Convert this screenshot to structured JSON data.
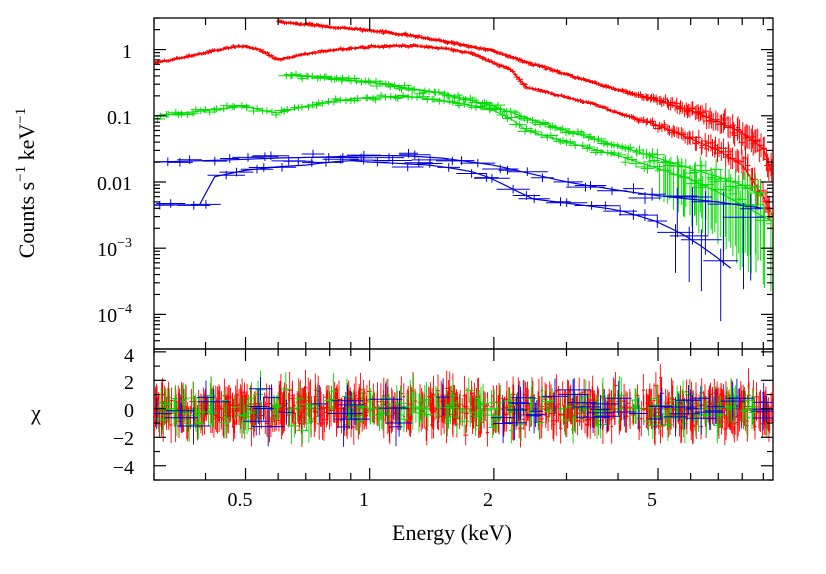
{
  "chart_data": {
    "type": "line",
    "description_free": true,
    "x_scale": "log",
    "xlabel": "Energy (keV)",
    "xlim": [
      0.3,
      9.5
    ],
    "x_ticks": [
      0.5,
      1,
      2,
      5
    ],
    "x_tick_labels": [
      "0.5",
      "1",
      "2",
      "5"
    ],
    "top_panel": {
      "ylabel_main": "Counts s",
      "ylabel_exp1": "−1",
      "ylabel_mid": " keV",
      "ylabel_exp2": "−1",
      "y_scale": "log",
      "ylim": [
        3e-05,
        3
      ],
      "y_ticks": [
        {
          "value": 1,
          "base": "1",
          "exp": ""
        },
        {
          "value": 0.1,
          "base": "0.1",
          "exp": ""
        },
        {
          "value": 0.01,
          "base": "0.01",
          "exp": ""
        },
        {
          "value": 0.001,
          "base": "10",
          "exp": "−3"
        },
        {
          "value": 0.0001,
          "base": "10",
          "exp": "−4"
        }
      ],
      "series": [
        {
          "name": "red-low",
          "color": "#ff0000",
          "x": [
            0.3,
            0.35,
            0.4,
            0.45,
            0.5,
            0.55,
            0.6,
            0.7,
            0.8,
            0.9,
            1.0,
            1.2,
            1.4,
            1.6,
            1.8,
            2.0,
            2.2,
            2.4,
            2.6,
            3.0,
            3.5,
            4.0,
            5.0,
            6.0,
            7.0,
            8.0,
            9.0,
            9.5
          ],
          "y": [
            0.62,
            0.75,
            0.9,
            1.05,
            1.15,
            0.95,
            0.7,
            0.85,
            0.98,
            1.05,
            1.1,
            1.15,
            1.1,
            1.0,
            0.85,
            0.62,
            0.5,
            0.27,
            0.24,
            0.19,
            0.15,
            0.11,
            0.072,
            0.045,
            0.03,
            0.018,
            0.006,
            0.003
          ]
        },
        {
          "name": "red-high",
          "color": "#ff0000",
          "x": [
            0.6,
            0.7,
            0.8,
            1.0,
            1.2,
            1.5,
            2.0,
            2.5,
            3.0,
            4.0,
            5.0,
            6.0,
            7.0,
            8.0,
            9.0,
            9.5
          ],
          "y": [
            2.6,
            2.4,
            2.2,
            1.95,
            1.7,
            1.35,
            0.95,
            0.6,
            0.42,
            0.25,
            0.17,
            0.12,
            0.082,
            0.055,
            0.032,
            0.012
          ]
        },
        {
          "name": "green-low",
          "color": "#00dd00",
          "x": [
            0.3,
            0.35,
            0.4,
            0.45,
            0.5,
            0.55,
            0.6,
            0.7,
            0.8,
            0.9,
            1.0,
            1.2,
            1.4,
            1.6,
            1.8,
            2.0,
            2.2,
            2.4,
            3.0,
            4.0,
            5.0,
            6.0,
            7.0,
            8.0,
            9.0,
            9.5
          ],
          "y": [
            0.1,
            0.11,
            0.12,
            0.13,
            0.14,
            0.12,
            0.11,
            0.14,
            0.16,
            0.18,
            0.19,
            0.2,
            0.18,
            0.16,
            0.14,
            0.12,
            0.09,
            0.06,
            0.04,
            0.025,
            0.016,
            0.011,
            0.007,
            0.0045,
            0.003,
            0.0025
          ]
        },
        {
          "name": "green-high",
          "color": "#00dd00",
          "x": [
            0.62,
            0.7,
            0.8,
            1.0,
            1.2,
            1.5,
            2.0,
            2.5,
            3.0,
            4.0,
            5.0,
            6.0,
            7.0,
            8.0,
            9.0
          ],
          "y": [
            0.42,
            0.4,
            0.37,
            0.32,
            0.27,
            0.22,
            0.14,
            0.085,
            0.06,
            0.035,
            0.023,
            0.016,
            0.012,
            0.009,
            0.006
          ]
        },
        {
          "name": "blue-low",
          "color": "#0000dd",
          "x": [
            0.3,
            0.4,
            0.42,
            0.5,
            0.6,
            0.7,
            0.8,
            0.9,
            1.0,
            1.2,
            1.4,
            1.6,
            1.8,
            2.0,
            2.2,
            2.5,
            3.0,
            4.0,
            5.0,
            6.0,
            7.0,
            7.5
          ],
          "y": [
            0.0045,
            0.0045,
            0.012,
            0.015,
            0.017,
            0.018,
            0.02,
            0.021,
            0.02,
            0.019,
            0.018,
            0.016,
            0.014,
            0.011,
            0.008,
            0.0055,
            0.0048,
            0.0038,
            0.0025,
            0.0014,
            0.0007,
            0.0005
          ]
        },
        {
          "name": "blue-high",
          "color": "#0000dd",
          "x": [
            0.3,
            0.4,
            0.5,
            0.6,
            0.8,
            1.0,
            1.2,
            1.5,
            2.0,
            2.5,
            3.0,
            4.0,
            5.0,
            6.0,
            7.0,
            8.0,
            9.0
          ],
          "y": [
            0.02,
            0.021,
            0.022,
            0.023,
            0.024,
            0.025,
            0.025,
            0.023,
            0.018,
            0.013,
            0.01,
            0.0075,
            0.0062,
            0.0055,
            0.005,
            0.0044,
            0.004
          ]
        }
      ]
    },
    "bottom_panel": {
      "ylabel": "χ",
      "ylim": [
        -5,
        4.2
      ],
      "y_ticks": [
        4,
        2,
        0,
        -2,
        -4
      ],
      "y_tick_labels": [
        "4",
        "2",
        "0",
        "−2",
        "−4"
      ],
      "residual_series": [
        {
          "name": "red",
          "color": "#ff0000",
          "count": 900
        },
        {
          "name": "green",
          "color": "#00dd00",
          "count": 220
        },
        {
          "name": "blue",
          "color": "#0000dd",
          "count": 70
        }
      ]
    }
  }
}
